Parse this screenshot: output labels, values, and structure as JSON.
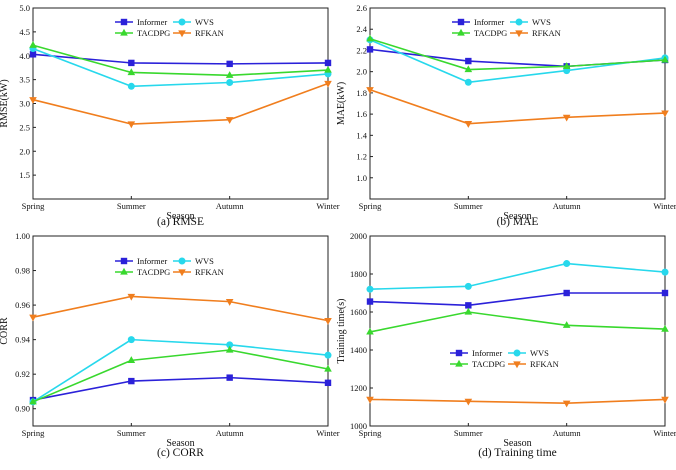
{
  "chart_data": [
    {
      "id": "rmse",
      "type": "line",
      "categories": [
        "Spring",
        "Summer",
        "Autumn",
        "Winter"
      ],
      "xlabel": "Season",
      "ylabel": "RMSE(kW)",
      "caption": "(a) RMSE",
      "ylim": [
        1.0,
        5.0
      ],
      "yticks": [
        1.5,
        2.0,
        2.5,
        3.0,
        3.5,
        4.0,
        4.5,
        5.0
      ],
      "decimals": 1,
      "legend_position": "top-center",
      "series": [
        {
          "name": "Informer",
          "color": "#2b21d9",
          "marker": "square",
          "values": [
            4.03,
            3.85,
            3.83,
            3.85
          ]
        },
        {
          "name": "WVS",
          "color": "#27d8ec",
          "marker": "circle",
          "values": [
            4.15,
            3.36,
            3.44,
            3.62
          ]
        },
        {
          "name": "TACDPG",
          "color": "#39d82e",
          "marker": "triangle-up",
          "values": [
            4.22,
            3.65,
            3.59,
            3.7
          ]
        },
        {
          "name": "RFKAN",
          "color": "#f07e1e",
          "marker": "triangle-down",
          "values": [
            3.08,
            2.57,
            2.66,
            3.42
          ]
        }
      ]
    },
    {
      "id": "mae",
      "type": "line",
      "categories": [
        "Spring",
        "Summer",
        "Autumn",
        "Winter"
      ],
      "xlabel": "Season",
      "ylabel": "MAE(kW)",
      "caption": "(b) MAE",
      "ylim": [
        0.8,
        2.6
      ],
      "yticks": [
        1.0,
        1.2,
        1.4,
        1.6,
        1.8,
        2.0,
        2.2,
        2.4,
        2.6
      ],
      "decimals": 1,
      "legend_position": "top-center",
      "series": [
        {
          "name": "Informer",
          "color": "#2b21d9",
          "marker": "square",
          "values": [
            2.21,
            2.1,
            2.05,
            2.11
          ]
        },
        {
          "name": "WVS",
          "color": "#27d8ec",
          "marker": "circle",
          "values": [
            2.3,
            1.9,
            2.01,
            2.13
          ]
        },
        {
          "name": "TACDPG",
          "color": "#39d82e",
          "marker": "triangle-up",
          "values": [
            2.31,
            2.02,
            2.05,
            2.11
          ]
        },
        {
          "name": "RFKAN",
          "color": "#f07e1e",
          "marker": "triangle-down",
          "values": [
            1.83,
            1.51,
            1.57,
            1.61
          ]
        }
      ]
    },
    {
      "id": "corr",
      "type": "line",
      "categories": [
        "Spring",
        "Summer",
        "Autumn",
        "Winter"
      ],
      "xlabel": "Season",
      "ylabel": "CORR",
      "caption": "(c) CORR",
      "ylim": [
        0.89,
        1.0
      ],
      "yticks": [
        0.9,
        0.92,
        0.94,
        0.96,
        0.98,
        1.0
      ],
      "decimals": 2,
      "legend_position": "top-center",
      "series": [
        {
          "name": "Informer",
          "color": "#2b21d9",
          "marker": "square",
          "values": [
            0.905,
            0.916,
            0.918,
            0.915
          ]
        },
        {
          "name": "WVS",
          "color": "#27d8ec",
          "marker": "circle",
          "values": [
            0.904,
            0.94,
            0.937,
            0.931
          ]
        },
        {
          "name": "TACDPG",
          "color": "#39d82e",
          "marker": "triangle-up",
          "values": [
            0.904,
            0.928,
            0.934,
            0.923
          ]
        },
        {
          "name": "RFKAN",
          "color": "#f07e1e",
          "marker": "triangle-down",
          "values": [
            0.953,
            0.965,
            0.962,
            0.951
          ]
        }
      ]
    },
    {
      "id": "training-time",
      "type": "line",
      "categories": [
        "Spring",
        "Summer",
        "Autumn",
        "Winter"
      ],
      "xlabel": "Season",
      "ylabel": "Training time(s)",
      "caption": "(d) Training time",
      "ylim": [
        1000,
        2000
      ],
      "yticks": [
        1000,
        1200,
        1400,
        1600,
        1800,
        2000
      ],
      "decimals": 0,
      "legend_position": "center",
      "series": [
        {
          "name": "Informer",
          "color": "#2b21d9",
          "marker": "square",
          "values": [
            1655,
            1635,
            1700,
            1700
          ]
        },
        {
          "name": "WVS",
          "color": "#27d8ec",
          "marker": "circle",
          "values": [
            1720,
            1735,
            1855,
            1810
          ]
        },
        {
          "name": "TACDPG",
          "color": "#39d82e",
          "marker": "triangle-up",
          "values": [
            1495,
            1600,
            1530,
            1510
          ]
        },
        {
          "name": "RFKAN",
          "color": "#f07e1e",
          "marker": "triangle-down",
          "values": [
            1140,
            1130,
            1120,
            1140
          ]
        }
      ]
    }
  ]
}
